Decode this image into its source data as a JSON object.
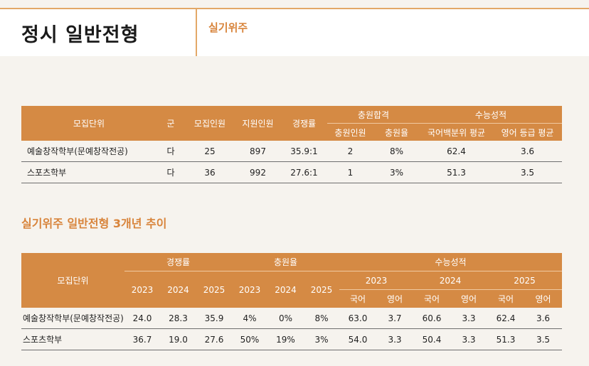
{
  "header": {
    "title": "정시 일반전형",
    "subtitle": "실기위주"
  },
  "table1": {
    "headers": {
      "unit": "모집단위",
      "group": "군",
      "quota": "모집인원",
      "applicants": "지원인원",
      "ratio": "경쟁률",
      "fill_group": "충원합격",
      "fill_count": "충원인원",
      "fill_rate": "충원율",
      "exam_group": "수능성적",
      "korean": "국어백분위 평균",
      "english": "영어 등급 평균"
    },
    "rows": [
      {
        "unit": "예술창작학부(문예창작전공)",
        "group": "다",
        "quota": "25",
        "applicants": "897",
        "ratio": "35.9:1",
        "fill_count": "2",
        "fill_rate": "8%",
        "korean": "62.4",
        "english": "3.6"
      },
      {
        "unit": "스포츠학부",
        "group": "다",
        "quota": "36",
        "applicants": "992",
        "ratio": "27.6:1",
        "fill_count": "1",
        "fill_rate": "3%",
        "korean": "51.3",
        "english": "3.5"
      }
    ]
  },
  "section2_title": "실기위주 일반전형 3개년 추이",
  "table2": {
    "headers": {
      "unit": "모집단위",
      "ratio": "경쟁률",
      "fill_rate": "충원율",
      "exam": "수능성적",
      "y2023": "2023",
      "y2024": "2024",
      "y2025": "2025",
      "korean": "국어",
      "english": "영어"
    },
    "rows": [
      {
        "unit": "예술창작학부(문예창작전공)",
        "ratio": [
          "24.0",
          "28.3",
          "35.9"
        ],
        "fill": [
          "4%",
          "0%",
          "8%"
        ],
        "exam": [
          "63.0",
          "3.7",
          "60.6",
          "3.3",
          "62.4",
          "3.6"
        ]
      },
      {
        "unit": "스포츠학부",
        "ratio": [
          "36.7",
          "19.0",
          "27.6"
        ],
        "fill": [
          "50%",
          "19%",
          "3%"
        ],
        "exam": [
          "54.0",
          "3.3",
          "50.4",
          "3.3",
          "51.3",
          "3.5"
        ]
      }
    ]
  }
}
